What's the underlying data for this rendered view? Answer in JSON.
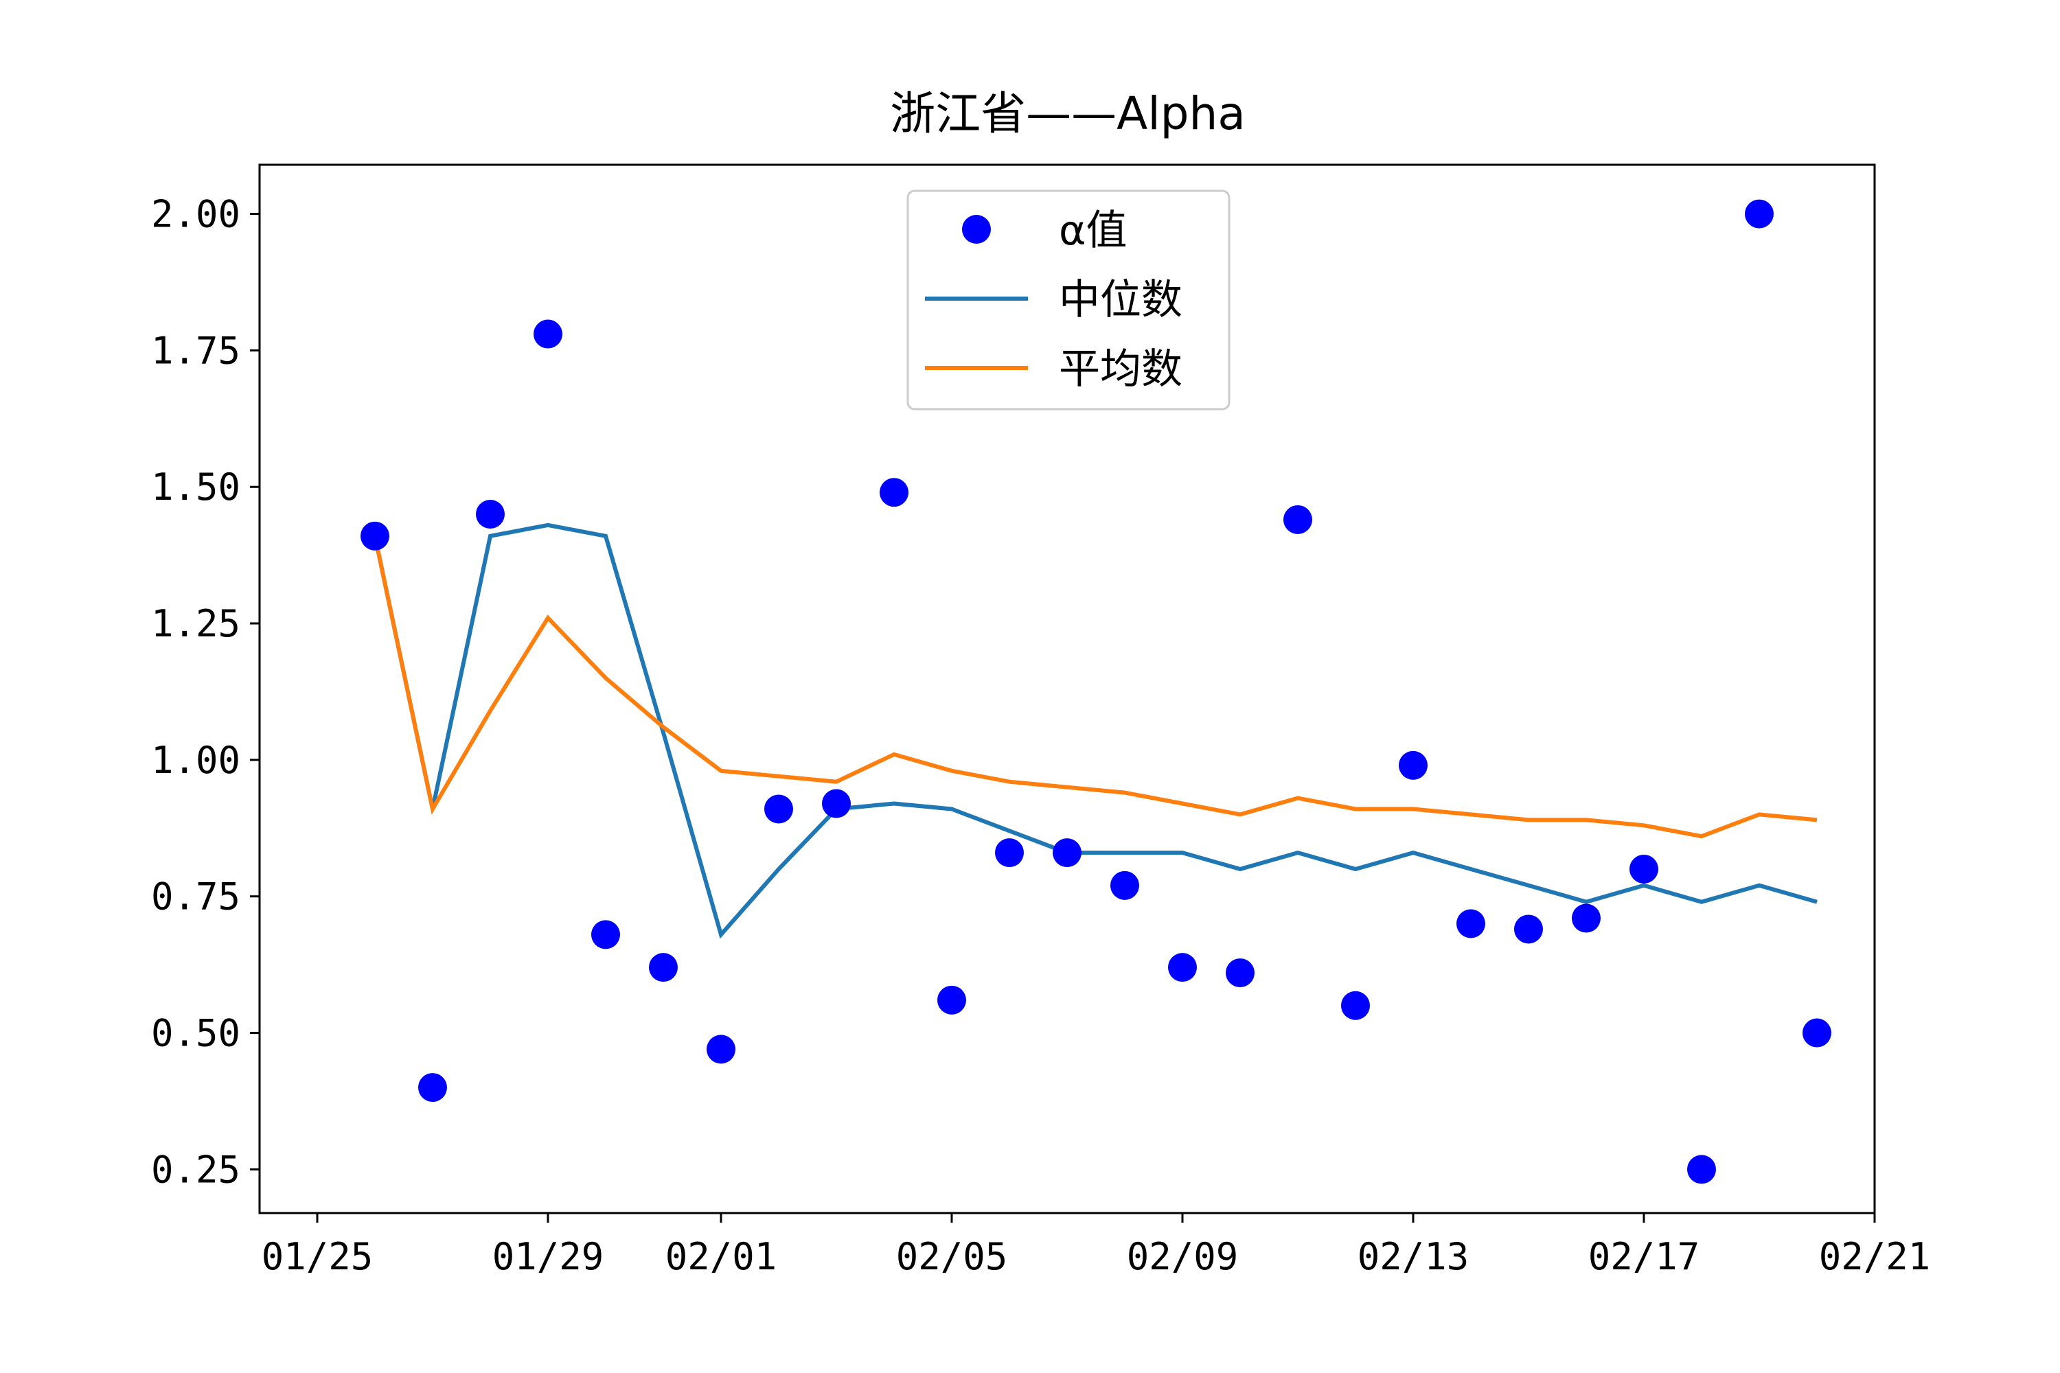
{
  "chart_data": {
    "type": "line",
    "title": "浙江省——Alpha",
    "xlabel": "",
    "ylabel": "",
    "x_ticks": [
      "01/25",
      "01/29",
      "02/01",
      "02/05",
      "02/09",
      "02/13",
      "02/17",
      "02/21"
    ],
    "x_tick_dates": [
      "2020-01-25",
      "2020-01-29",
      "2020-02-01",
      "2020-02-05",
      "2020-02-09",
      "2020-02-13",
      "2020-02-17",
      "2020-02-21"
    ],
    "xlim": [
      "2020-01-24",
      "2020-02-21"
    ],
    "y_ticks": [
      "0.25",
      "0.50",
      "0.75",
      "1.00",
      "1.25",
      "1.50",
      "1.75",
      "2.00"
    ],
    "ylim": [
      0.17,
      2.09
    ],
    "grid": false,
    "legend_position": "upper center",
    "x": [
      "2020-01-26",
      "2020-01-27",
      "2020-01-28",
      "2020-01-29",
      "2020-01-30",
      "2020-01-31",
      "2020-02-01",
      "2020-02-02",
      "2020-02-03",
      "2020-02-04",
      "2020-02-05",
      "2020-02-06",
      "2020-02-07",
      "2020-02-08",
      "2020-02-09",
      "2020-02-10",
      "2020-02-11",
      "2020-02-12",
      "2020-02-13",
      "2020-02-14",
      "2020-02-15",
      "2020-02-16",
      "2020-02-17",
      "2020-02-18",
      "2020-02-19",
      "2020-02-20"
    ],
    "series": [
      {
        "name": "α值",
        "style": "scatter",
        "color": "#0000ff",
        "values": [
          1.41,
          0.4,
          1.45,
          1.78,
          0.68,
          0.62,
          0.47,
          0.91,
          0.92,
          1.49,
          0.56,
          0.83,
          0.83,
          0.77,
          0.62,
          0.61,
          1.44,
          0.55,
          0.99,
          0.7,
          0.69,
          0.71,
          0.8,
          0.25,
          2.0,
          0.5
        ]
      },
      {
        "name": "中位数",
        "style": "line",
        "color": "#1f77b4",
        "values": [
          1.41,
          0.91,
          1.41,
          1.43,
          1.41,
          1.05,
          0.68,
          0.8,
          0.91,
          0.92,
          0.91,
          0.87,
          0.83,
          0.83,
          0.83,
          0.8,
          0.83,
          0.8,
          0.83,
          0.8,
          0.77,
          0.74,
          0.77,
          0.74,
          0.77,
          0.74
        ]
      },
      {
        "name": "平均数",
        "style": "line",
        "color": "#ff7f0e",
        "values": [
          1.41,
          0.91,
          1.09,
          1.26,
          1.15,
          1.06,
          0.98,
          0.97,
          0.96,
          1.01,
          0.98,
          0.96,
          0.95,
          0.94,
          0.92,
          0.9,
          0.93,
          0.91,
          0.91,
          0.9,
          0.89,
          0.89,
          0.88,
          0.86,
          0.9,
          0.89
        ]
      }
    ]
  }
}
